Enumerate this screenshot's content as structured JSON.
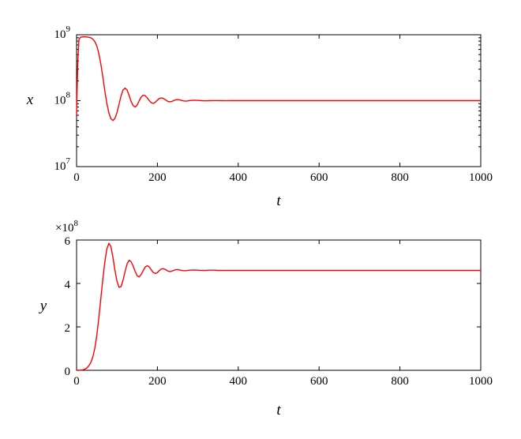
{
  "colors": {
    "series": "#ff0000",
    "axes": "#000000",
    "background": "#ffffff"
  },
  "chart_data": [
    {
      "type": "line",
      "xlabel": "t",
      "ylabel": "x",
      "xlim": [
        0,
        1000
      ],
      "ylim": [
        10000000,
        1000000000
      ],
      "yscale": "log",
      "grid": false,
      "xticks": [
        0,
        200,
        400,
        600,
        800,
        1000
      ],
      "xtick_labels": [
        "0",
        "200",
        "400",
        "600",
        "800",
        "1000"
      ],
      "yticks": [
        10000000,
        100000000,
        1000000000
      ],
      "ytick_labels": [
        {
          "base": "10",
          "exp": "7"
        },
        {
          "base": "10",
          "exp": "8"
        },
        {
          "base": "10",
          "exp": "9"
        }
      ],
      "x": [
        0,
        3,
        6,
        10,
        15,
        20,
        25,
        30,
        35,
        40,
        45,
        50,
        55,
        60,
        65,
        70,
        75,
        80,
        85,
        90,
        95,
        100,
        105,
        110,
        115,
        120,
        125,
        130,
        135,
        140,
        145,
        150,
        155,
        160,
        165,
        170,
        175,
        180,
        185,
        190,
        195,
        200,
        205,
        210,
        215,
        220,
        225,
        230,
        235,
        240,
        245,
        250,
        255,
        260,
        265,
        270,
        275,
        280,
        290,
        300,
        310,
        320,
        330,
        340,
        350,
        360,
        370,
        380,
        400,
        450,
        500,
        600,
        700,
        800,
        900,
        1000
      ],
      "y": [
        60000000,
        400000000,
        850000000,
        920000000,
        930000000,
        930000000,
        925000000,
        915000000,
        900000000,
        860000000,
        790000000,
        680000000,
        520000000,
        360000000,
        230000000,
        140000000,
        90000000,
        65000000,
        53000000,
        50000000,
        54000000,
        66000000,
        88000000,
        118000000,
        145000000,
        155000000,
        145000000,
        120000000,
        97000000,
        84000000,
        80000000,
        86000000,
        100000000,
        114000000,
        121000000,
        119000000,
        110000000,
        100000000,
        93000000,
        91000000,
        95000000,
        102000000,
        108000000,
        110000000,
        108000000,
        103000000,
        98000000,
        96000000,
        97000000,
        100000000,
        103000000,
        104000000,
        103000000,
        101000000,
        99000000,
        98500000,
        99000000,
        100500000,
        101500000,
        101000000,
        100000000,
        99500000,
        100000000,
        100300000,
        100200000,
        100000000,
        99900000,
        100000000,
        100000000,
        100000000,
        100000000,
        100000000,
        100000000,
        100000000,
        100000000,
        100000000
      ],
      "series": [
        {
          "color": "#ff0000"
        }
      ]
    },
    {
      "type": "line",
      "xlabel": "t",
      "ylabel": "y",
      "xlim": [
        0,
        1000
      ],
      "ylim": [
        0,
        6
      ],
      "y_multiplier_label": {
        "prefix": "×10",
        "exp": "8"
      },
      "grid": false,
      "xticks": [
        0,
        200,
        400,
        600,
        800,
        1000
      ],
      "xtick_labels": [
        "0",
        "200",
        "400",
        "600",
        "800",
        "1000"
      ],
      "yticks": [
        0,
        2,
        4,
        6
      ],
      "ytick_labels": [
        "0",
        "2",
        "4",
        "6"
      ],
      "x": [
        0,
        5,
        10,
        15,
        20,
        25,
        30,
        35,
        40,
        45,
        50,
        55,
        60,
        65,
        70,
        75,
        80,
        85,
        90,
        95,
        100,
        105,
        110,
        115,
        120,
        125,
        130,
        135,
        140,
        145,
        150,
        155,
        160,
        165,
        170,
        175,
        180,
        185,
        190,
        195,
        200,
        205,
        210,
        215,
        220,
        225,
        230,
        235,
        240,
        245,
        250,
        255,
        260,
        265,
        270,
        280,
        290,
        300,
        310,
        320,
        330,
        340,
        350,
        360,
        370,
        380,
        400,
        450,
        500,
        600,
        700,
        800,
        900,
        1000
      ],
      "y": [
        0,
        0,
        0.01,
        0.02,
        0.05,
        0.1,
        0.2,
        0.35,
        0.6,
        1.0,
        1.6,
        2.4,
        3.3,
        4.2,
        5.0,
        5.6,
        5.85,
        5.7,
        5.2,
        4.6,
        4.1,
        3.82,
        3.85,
        4.15,
        4.55,
        4.9,
        5.07,
        5.0,
        4.8,
        4.55,
        4.35,
        4.3,
        4.42,
        4.6,
        4.76,
        4.82,
        4.76,
        4.62,
        4.5,
        4.46,
        4.5,
        4.6,
        4.67,
        4.68,
        4.64,
        4.58,
        4.55,
        4.56,
        4.6,
        4.63,
        4.64,
        4.62,
        4.6,
        4.59,
        4.59,
        4.61,
        4.62,
        4.61,
        4.6,
        4.6,
        4.61,
        4.61,
        4.6,
        4.6,
        4.6,
        4.6,
        4.6,
        4.6,
        4.6,
        4.6,
        4.6,
        4.6,
        4.6,
        4.6
      ],
      "series": [
        {
          "color": "#ff0000"
        }
      ]
    }
  ]
}
